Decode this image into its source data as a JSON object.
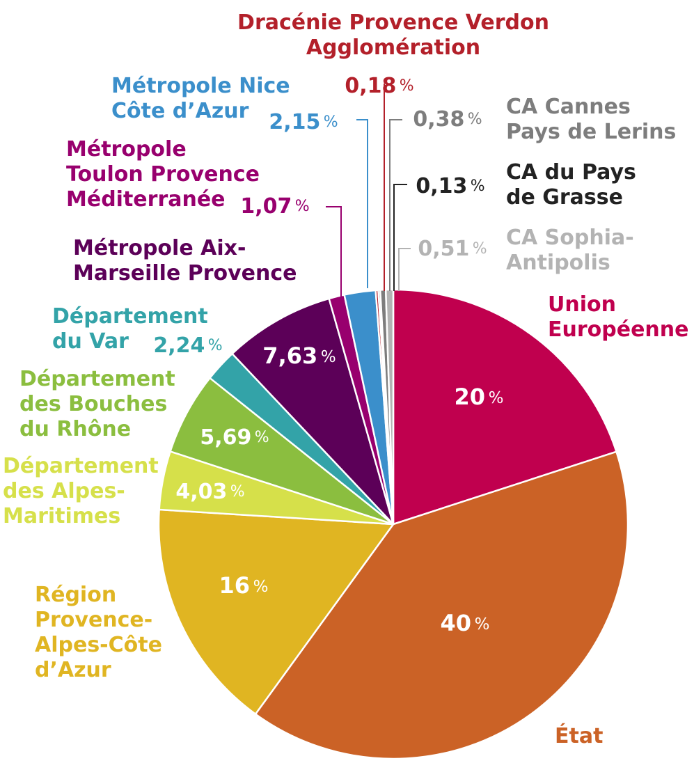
{
  "chart_data": {
    "type": "pie",
    "slices": [
      {
        "key": "union_europeenne",
        "label": "Union Européenne",
        "value": 20,
        "value_label": "20",
        "color": "#c0004e",
        "label_color": "#c0004e",
        "value_color": "#ffffff"
      },
      {
        "key": "etat",
        "label": "État",
        "value": 40,
        "value_label": "40",
        "color": "#cb6226",
        "label_color": "#cb6226",
        "value_color": "#ffffff"
      },
      {
        "key": "region_paca",
        "label": "Région Provence-Alpes-Côte d’Azur",
        "value": 16,
        "value_label": "16",
        "color": "#e0b522",
        "label_color": "#e0b522",
        "value_color": "#ffffff"
      },
      {
        "key": "dep_alpes_maritimes",
        "label": "Département des Alpes-Maritimes",
        "value": 4.03,
        "value_label": "4,03",
        "color": "#d6e04a",
        "label_color": "#d6e04a",
        "value_color": "#ffffff"
      },
      {
        "key": "dep_bouches_du_rhone",
        "label": "Département des Bouches du Rhône",
        "value": 5.69,
        "value_label": "5,69",
        "color": "#8bbe3f",
        "label_color": "#8bbe3f",
        "value_color": "#ffffff"
      },
      {
        "key": "dep_var",
        "label": "Département du Var",
        "value": 2.24,
        "value_label": "2,24",
        "color": "#33a3a8",
        "label_color": "#33a3a8",
        "value_color": "#33a3a8"
      },
      {
        "key": "metropole_aix_marseille",
        "label": "Métropole Aix-Marseille Provence",
        "value": 7.63,
        "value_label": "7,63",
        "color": "#5c0058",
        "label_color": "#5c0058",
        "value_color": "#ffffff"
      },
      {
        "key": "metropole_toulon",
        "label": "Métropole Toulon Provence Méditerranée",
        "value": 1.07,
        "value_label": "1,07",
        "color": "#98006e",
        "label_color": "#98006e",
        "value_color": "#98006e"
      },
      {
        "key": "metropole_nice",
        "label": "Métropole Nice Côte d’Azur",
        "value": 2.15,
        "value_label": "2,15",
        "color": "#3b8fcb",
        "label_color": "#3b8fcb",
        "value_color": "#3b8fcb"
      },
      {
        "key": "dracenie",
        "label": "Dracénie Provence Verdon Agglomération",
        "value": 0.18,
        "value_label": "0,18",
        "color": "#b3202a",
        "label_color": "#b3202a",
        "value_color": "#b3202a"
      },
      {
        "key": "ca_pays_grasse",
        "label": "CA du Pays de Grasse",
        "value": 0.13,
        "value_label": "0,13",
        "color": "#222222",
        "label_color": "#222222",
        "value_color": "#222222"
      },
      {
        "key": "ca_cannes",
        "label": "CA Cannes Pays de Lerins",
        "value": 0.38,
        "value_label": "0,38",
        "color": "#7d7d7d",
        "label_color": "#7d7d7d",
        "value_color": "#7d7d7d"
      },
      {
        "key": "ca_sophia",
        "label": "CA Sophia-Antipolis",
        "value": 0.51,
        "value_label": "0,51",
        "color": "#b3b3b3",
        "label_color": "#b3b3b3",
        "value_color": "#b3b3b3"
      }
    ],
    "label_lines": {
      "union_europeenne": [
        "Union",
        "Européenne"
      ],
      "etat": [
        "État"
      ],
      "region_paca": [
        "Région",
        "Provence-",
        "Alpes-Côte",
        "d’Azur"
      ],
      "dep_alpes_maritimes": [
        "Département",
        "des Alpes-",
        "Maritimes"
      ],
      "dep_bouches_du_rhone": [
        "Département",
        "des Bouches",
        "du Rhône"
      ],
      "dep_var": [
        "Département",
        "du Var"
      ],
      "metropole_aix_marseille": [
        "Métropole Aix-",
        "Marseille Provence"
      ],
      "metropole_toulon": [
        "Métropole",
        "Toulon Provence",
        "Méditerranée"
      ],
      "metropole_nice": [
        "Métropole Nice",
        "Côte d’Azur"
      ],
      "dracenie": [
        "Dracénie Provence Verdon",
        "Agglomération"
      ],
      "ca_pays_grasse": [
        "CA du Pays",
        "de Grasse"
      ],
      "ca_cannes": [
        "CA Cannes",
        "Pays de Lerins"
      ],
      "ca_sophia": [
        "CA Sophia-",
        "Antipolis"
      ]
    },
    "percent_suffix": "%",
    "start": "12 o'clock",
    "direction": "clockwise"
  }
}
